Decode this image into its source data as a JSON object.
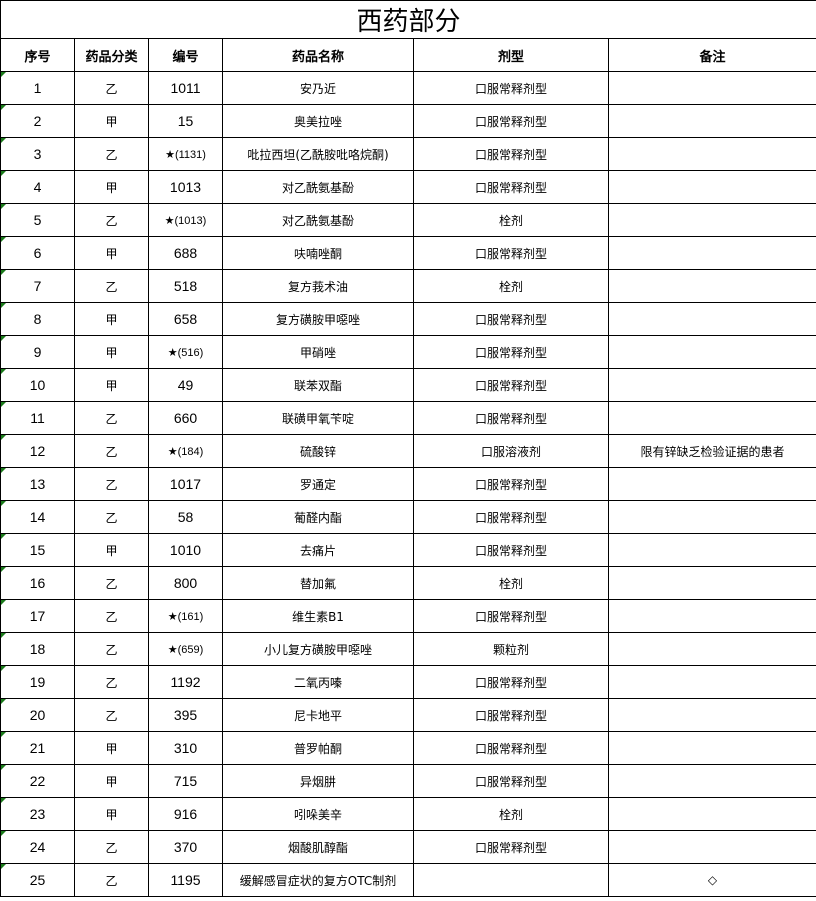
{
  "title": "西药部分",
  "headers": [
    "序号",
    "药品分类",
    "编号",
    "药品名称",
    "剂型",
    "备注"
  ],
  "rows": [
    {
      "no": "1",
      "cat": "乙",
      "code": "1011",
      "name": "安乃近",
      "form": "口服常释剂型",
      "note": ""
    },
    {
      "no": "2",
      "cat": "甲",
      "code": "15",
      "name": "奥美拉唑",
      "form": "口服常释剂型",
      "note": ""
    },
    {
      "no": "3",
      "cat": "乙",
      "code": "★(1131)",
      "name": "吡拉西坦(乙酰胺吡咯烷酮)",
      "form": "口服常释剂型",
      "note": ""
    },
    {
      "no": "4",
      "cat": "甲",
      "code": "1013",
      "name": "对乙酰氨基酚",
      "form": "口服常释剂型",
      "note": ""
    },
    {
      "no": "5",
      "cat": "乙",
      "code": "★(1013)",
      "name": "对乙酰氨基酚",
      "form": "栓剂",
      "note": ""
    },
    {
      "no": "6",
      "cat": "甲",
      "code": "688",
      "name": "呋喃唑酮",
      "form": "口服常释剂型",
      "note": ""
    },
    {
      "no": "7",
      "cat": "乙",
      "code": "518",
      "name": "复方莪术油",
      "form": "栓剂",
      "note": ""
    },
    {
      "no": "8",
      "cat": "甲",
      "code": "658",
      "name": "复方磺胺甲噁唑",
      "form": "口服常释剂型",
      "note": ""
    },
    {
      "no": "9",
      "cat": "甲",
      "code": "★(516)",
      "name": "甲硝唑",
      "form": "口服常释剂型",
      "note": ""
    },
    {
      "no": "10",
      "cat": "甲",
      "code": "49",
      "name": "联苯双酯",
      "form": "口服常释剂型",
      "note": ""
    },
    {
      "no": "11",
      "cat": "乙",
      "code": "660",
      "name": "联磺甲氧苄啶",
      "form": "口服常释剂型",
      "note": ""
    },
    {
      "no": "12",
      "cat": "乙",
      "code": "★(184)",
      "name": "硫酸锌",
      "form": "口服溶液剂",
      "note": "限有锌缺乏检验证据的患者"
    },
    {
      "no": "13",
      "cat": "乙",
      "code": "1017",
      "name": "罗通定",
      "form": "口服常释剂型",
      "note": ""
    },
    {
      "no": "14",
      "cat": "乙",
      "code": "58",
      "name": "葡醛内酯",
      "form": "口服常释剂型",
      "note": ""
    },
    {
      "no": "15",
      "cat": "甲",
      "code": "1010",
      "name": "去痛片",
      "form": "口服常释剂型",
      "note": ""
    },
    {
      "no": "16",
      "cat": "乙",
      "code": "800",
      "name": "替加氟",
      "form": "栓剂",
      "note": ""
    },
    {
      "no": "17",
      "cat": "乙",
      "code": "★(161)",
      "name": "维生素B1",
      "form": "口服常释剂型",
      "note": ""
    },
    {
      "no": "18",
      "cat": "乙",
      "code": "★(659)",
      "name": "小儿复方磺胺甲噁唑",
      "form": "颗粒剂",
      "note": ""
    },
    {
      "no": "19",
      "cat": "乙",
      "code": "1192",
      "name": "二氧丙嗪",
      "form": "口服常释剂型",
      "note": ""
    },
    {
      "no": "20",
      "cat": "乙",
      "code": "395",
      "name": "尼卡地平",
      "form": "口服常释剂型",
      "note": ""
    },
    {
      "no": "21",
      "cat": "甲",
      "code": "310",
      "name": "普罗帕酮",
      "form": "口服常释剂型",
      "note": ""
    },
    {
      "no": "22",
      "cat": "甲",
      "code": "715",
      "name": "异烟肼",
      "form": "口服常释剂型",
      "note": ""
    },
    {
      "no": "23",
      "cat": "甲",
      "code": "916",
      "name": "吲哚美辛",
      "form": "栓剂",
      "note": ""
    },
    {
      "no": "24",
      "cat": "乙",
      "code": "370",
      "name": "烟酸肌醇酯",
      "form": "口服常释剂型",
      "note": ""
    },
    {
      "no": "25",
      "cat": "乙",
      "code": "1195",
      "name": "缓解感冒症状的复方OTC制剂",
      "form": "",
      "note": "◇"
    }
  ]
}
